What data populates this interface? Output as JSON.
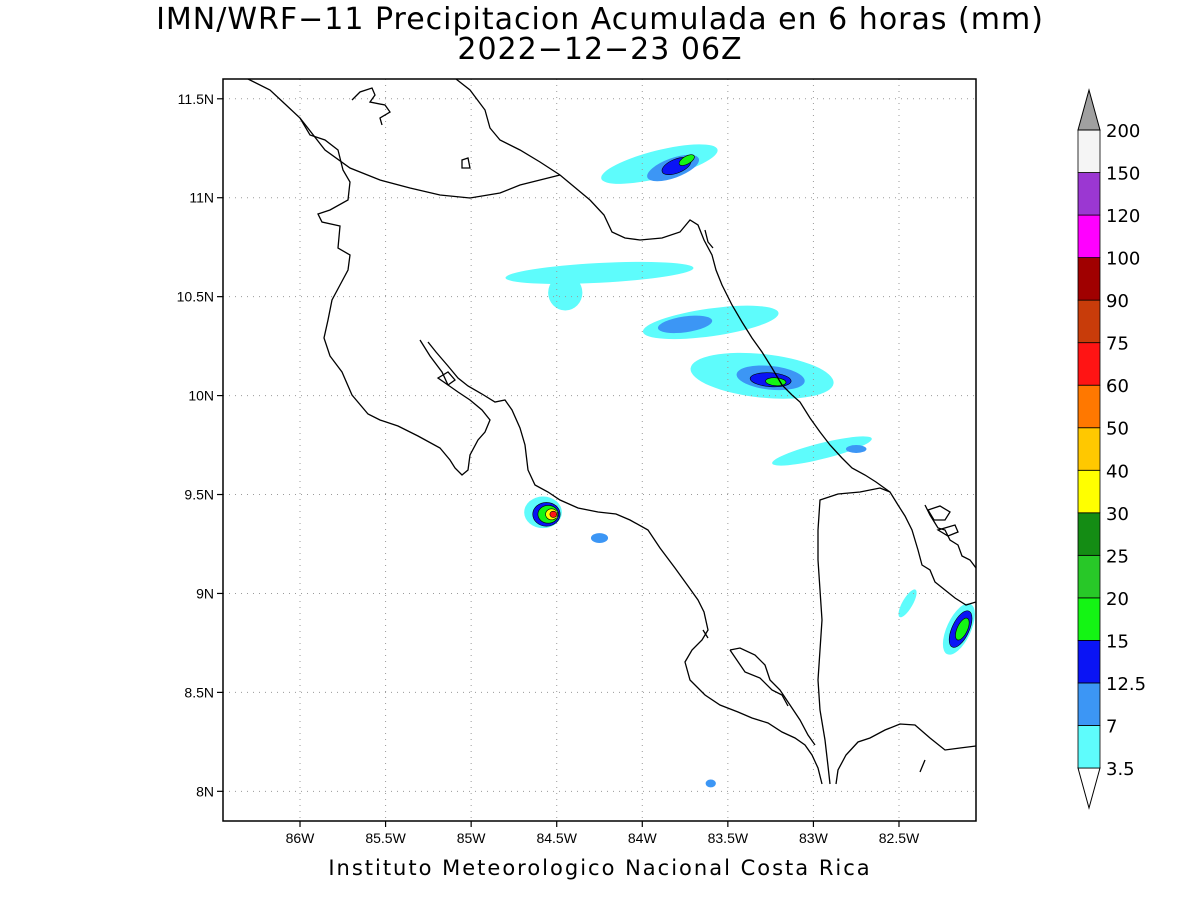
{
  "title": {
    "line1": "IMN/WRF−11 Precipitacion Acumulada en 6 horas (mm)",
    "line2": "2022−12−23 06Z"
  },
  "footer": "Instituto Meteorologico Nacional Costa Rica",
  "map_data": {
    "lon_range": [
      -86.45,
      -82.05
    ],
    "lat_range": [
      7.85,
      11.6
    ],
    "x_ticks": [
      {
        "value": -86.0,
        "label": "86W"
      },
      {
        "value": -85.5,
        "label": "85.5W"
      },
      {
        "value": -85.0,
        "label": "85W"
      },
      {
        "value": -84.5,
        "label": "84.5W"
      },
      {
        "value": -84.0,
        "label": "84W"
      },
      {
        "value": -83.5,
        "label": "83.5W"
      },
      {
        "value": -83.0,
        "label": "83W"
      },
      {
        "value": -82.5,
        "label": "82.5W"
      }
    ],
    "y_ticks": [
      {
        "value": 11.5,
        "label": "11.5N"
      },
      {
        "value": 11.0,
        "label": "11N"
      },
      {
        "value": 10.5,
        "label": "10.5N"
      },
      {
        "value": 10.0,
        "label": "10N"
      },
      {
        "value": 9.5,
        "label": "9.5N"
      },
      {
        "value": 9.0,
        "label": "9N"
      },
      {
        "value": 8.5,
        "label": "8.5N"
      },
      {
        "value": 8.0,
        "label": "8N"
      }
    ],
    "grid": true,
    "colorbar": [
      {
        "label": "3.5",
        "color": "#5efcfc"
      },
      {
        "label": "7",
        "color": "#3c96f5"
      },
      {
        "label": "12.5",
        "color": "#0a14f5"
      },
      {
        "label": "15",
        "color": "#14f514"
      },
      {
        "label": "20",
        "color": "#28c828"
      },
      {
        "label": "25",
        "color": "#148c14"
      },
      {
        "label": "30",
        "color": "#ffff00"
      },
      {
        "label": "40",
        "color": "#ffc800"
      },
      {
        "label": "50",
        "color": "#ff7800"
      },
      {
        "label": "60",
        "color": "#ff1414"
      },
      {
        "label": "75",
        "color": "#c83c0a"
      },
      {
        "label": "90",
        "color": "#a00000"
      },
      {
        "label": "100",
        "color": "#ff00ff"
      },
      {
        "label": "120",
        "color": "#9b37d2"
      },
      {
        "label": "150",
        "color": "#f5f5f5"
      },
      {
        "label": "200",
        "color": "#a0a0a0"
      }
    ],
    "precip_cells": [
      {
        "lon": -83.9,
        "lat": 11.17,
        "rx": 0.35,
        "ry": 0.07,
        "rot": -14,
        "level": 0
      },
      {
        "lon": -83.82,
        "lat": 11.15,
        "rx": 0.16,
        "ry": 0.05,
        "rot": -20,
        "level": 1
      },
      {
        "lon": -83.8,
        "lat": 11.16,
        "rx": 0.09,
        "ry": 0.035,
        "rot": -22,
        "level": 2
      },
      {
        "lon": -83.74,
        "lat": 11.19,
        "rx": 0.05,
        "ry": 0.02,
        "rot": -30,
        "level": 3
      },
      {
        "lon": -84.25,
        "lat": 10.62,
        "rx": 0.55,
        "ry": 0.05,
        "rot": -3,
        "level": 0
      },
      {
        "lon": -84.45,
        "lat": 10.52,
        "rx": 0.1,
        "ry": 0.09,
        "rot": 0,
        "level": 0
      },
      {
        "lon": -83.6,
        "lat": 10.37,
        "rx": 0.4,
        "ry": 0.07,
        "rot": -8,
        "level": 0
      },
      {
        "lon": -83.75,
        "lat": 10.36,
        "rx": 0.16,
        "ry": 0.04,
        "rot": -8,
        "level": 1
      },
      {
        "lon": -83.3,
        "lat": 10.1,
        "rx": 0.42,
        "ry": 0.11,
        "rot": 6,
        "level": 0
      },
      {
        "lon": -83.25,
        "lat": 10.09,
        "rx": 0.2,
        "ry": 0.06,
        "rot": 6,
        "level": 1
      },
      {
        "lon": -83.25,
        "lat": 10.08,
        "rx": 0.12,
        "ry": 0.035,
        "rot": 4,
        "level": 2
      },
      {
        "lon": -83.22,
        "lat": 10.07,
        "rx": 0.06,
        "ry": 0.02,
        "rot": 4,
        "level": 3
      },
      {
        "lon": -82.95,
        "lat": 9.72,
        "rx": 0.3,
        "ry": 0.04,
        "rot": -14,
        "level": 0
      },
      {
        "lon": -82.75,
        "lat": 9.73,
        "rx": 0.06,
        "ry": 0.02,
        "rot": 0,
        "level": 1
      },
      {
        "lon": -84.58,
        "lat": 9.41,
        "rx": 0.11,
        "ry": 0.08,
        "rot": 0,
        "level": 0
      },
      {
        "lon": -84.56,
        "lat": 9.4,
        "rx": 0.08,
        "ry": 0.06,
        "rot": 0,
        "level": 2
      },
      {
        "lon": -84.55,
        "lat": 9.4,
        "rx": 0.06,
        "ry": 0.045,
        "rot": 0,
        "level": 3
      },
      {
        "lon": -84.53,
        "lat": 9.4,
        "rx": 0.035,
        "ry": 0.028,
        "rot": 0,
        "level": 6
      },
      {
        "lon": -84.52,
        "lat": 9.4,
        "rx": 0.02,
        "ry": 0.016,
        "rot": 0,
        "level": 9
      },
      {
        "lon": -84.25,
        "lat": 9.28,
        "rx": 0.05,
        "ry": 0.025,
        "rot": 0,
        "level": 1
      },
      {
        "lon": -82.15,
        "lat": 8.82,
        "rx": 0.07,
        "ry": 0.14,
        "rot": 25,
        "level": 0
      },
      {
        "lon": -82.14,
        "lat": 8.82,
        "rx": 0.05,
        "ry": 0.1,
        "rot": 25,
        "level": 2
      },
      {
        "lon": -82.13,
        "lat": 8.82,
        "rx": 0.03,
        "ry": 0.06,
        "rot": 25,
        "level": 3
      },
      {
        "lon": -82.45,
        "lat": 8.95,
        "rx": 0.03,
        "ry": 0.08,
        "rot": 30,
        "level": 0
      },
      {
        "lon": -83.6,
        "lat": 8.04,
        "rx": 0.03,
        "ry": 0.02,
        "rot": 0,
        "level": 1
      }
    ]
  }
}
